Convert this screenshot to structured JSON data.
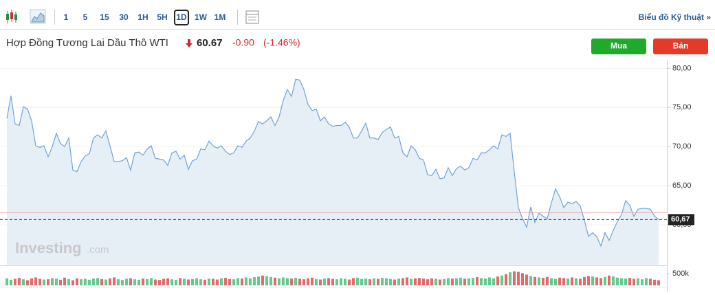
{
  "toolbar": {
    "intervals": [
      "1",
      "5",
      "15",
      "30",
      "1H",
      "5H",
      "1D",
      "1W",
      "1M"
    ],
    "selected": "1D",
    "link": "Biểu đồ Kỹ thuật »"
  },
  "header": {
    "instrument": "Hợp Đồng Tương Lai Dầu Thô WTI",
    "price": "60.67",
    "change": "-0.90",
    "change_pct": "(-1.46%)",
    "buy": "Mua",
    "sell": "Bán"
  },
  "watermark": [
    "Investing",
    ".com"
  ],
  "chart_data": {
    "type": "area",
    "color": "#6fa3d6",
    "fill": "#e6eef6",
    "values": [
      73.6,
      76.5,
      72.9,
      72.7,
      75.1,
      74.8,
      73.3,
      70.1,
      69.9,
      70.1,
      68.7,
      70.0,
      71.7,
      70.4,
      70.0,
      71.1,
      67.0,
      66.8,
      68.1,
      68.8,
      69.1,
      71.1,
      71.5,
      71.1,
      72.0,
      70.1,
      68.1,
      68.1,
      68.2,
      68.6,
      67.0,
      69.2,
      69.3,
      68.9,
      69.7,
      70.1,
      68.5,
      68.4,
      68.3,
      67.6,
      69.2,
      69.4,
      68.4,
      68.9,
      67.1,
      68.2,
      68.4,
      69.7,
      69.6,
      70.7,
      70.1,
      69.8,
      70.1,
      69.4,
      69.0,
      69.2,
      70.1,
      69.9,
      70.7,
      71.1,
      72.0,
      73.2,
      72.9,
      73.3,
      73.8,
      72.7,
      73.8,
      75.9,
      77.3,
      76.4,
      78.6,
      78.5,
      77.3,
      75.4,
      74.6,
      74.8,
      73.3,
      73.8,
      72.9,
      72.6,
      72.7,
      72.7,
      73.1,
      72.5,
      71.1,
      71.1,
      72.0,
      73.0,
      71.1,
      71.1,
      70.9,
      71.8,
      72.2,
      72.5,
      71.1,
      71.3,
      69.2,
      68.7,
      70.1,
      69.6,
      68.5,
      68.3,
      66.4,
      66.3,
      67.1,
      65.9,
      66.0,
      67.3,
      66.3,
      67.2,
      67.5,
      67.0,
      67.3,
      68.5,
      68.3,
      69.2,
      69.2,
      69.6,
      70.1,
      69.7,
      71.5,
      71.3,
      71.7,
      66.8,
      62.2,
      60.8,
      59.7,
      62.3,
      60.3,
      61.5,
      61.1,
      60.8,
      62.8,
      64.6,
      63.6,
      62.2,
      62.9,
      62.7,
      63.0,
      62.4,
      60.6,
      58.5,
      59.0,
      58.5,
      57.3,
      59.0,
      58.0,
      59.3,
      60.4,
      61.3,
      63.1,
      62.5,
      61.1,
      62.0,
      62.1,
      62.1,
      62.0,
      61.1,
      60.7
    ],
    "ylim": [
      54.9,
      81
    ],
    "yticks": [
      {
        "value": 80,
        "label": "80,00"
      },
      {
        "value": 75,
        "label": "75,00"
      },
      {
        "value": 70,
        "label": "70,00"
      },
      {
        "value": 65,
        "label": "65,00"
      },
      {
        "value": 60,
        "label": "60,00"
      }
    ],
    "current": {
      "value": 60.67,
      "label": "60,67"
    },
    "reference_line": 61.57,
    "volume": {
      "up_color": "#62c98f",
      "down_color": "#e36a6a",
      "ylim": [
        0,
        823000
      ],
      "yticks": [
        {
          "value": 500000,
          "label": "500k"
        }
      ],
      "values": [
        300000,
        240000,
        280000,
        320000,
        260000,
        220000,
        300000,
        340000,
        280000,
        250000,
        260000,
        310000,
        290000,
        240000,
        330000,
        270000,
        220000,
        300000,
        260000,
        280000,
        240000,
        290000,
        310000,
        270000,
        250000,
        300000,
        340000,
        260000,
        230000,
        280000,
        300000,
        260000,
        240000,
        290000,
        270000,
        320000,
        250000,
        230000,
        280000,
        300000,
        260000,
        240000,
        310000,
        280000,
        250000,
        270000,
        300000,
        260000,
        240000,
        290000,
        280000,
        250000,
        300000,
        320000,
        270000,
        260000,
        310000,
        290000,
        340000,
        300000,
        350000,
        380000,
        420000,
        400000,
        360000,
        330000,
        300000,
        340000,
        310000,
        290000,
        320000,
        280000,
        260000,
        300000,
        330000,
        270000,
        250000,
        290000,
        310000,
        280000,
        260000,
        300000,
        280000,
        250000,
        310000,
        330000,
        270000,
        290000,
        260000,
        300000,
        280000,
        320000,
        300000,
        270000,
        250000,
        290000,
        310000,
        340000,
        280000,
        300000,
        320000,
        290000,
        260000,
        300000,
        280000,
        250000,
        270000,
        310000,
        290000,
        300000,
        330000,
        280000,
        300000,
        320000,
        350000,
        310000,
        290000,
        340000,
        300000,
        380000,
        420000,
        480000,
        560000,
        600000,
        580000,
        520000,
        460000,
        400000,
        360000,
        340000,
        320000,
        360000,
        300000,
        280000,
        330000,
        310000,
        290000,
        340000,
        300000,
        280000,
        360000,
        400000,
        380000,
        340000,
        310000,
        360000,
        420000,
        380000,
        330000,
        300000,
        290000,
        320000,
        280000,
        300000,
        260000,
        310000,
        280000,
        240000,
        220000
      ]
    }
  }
}
